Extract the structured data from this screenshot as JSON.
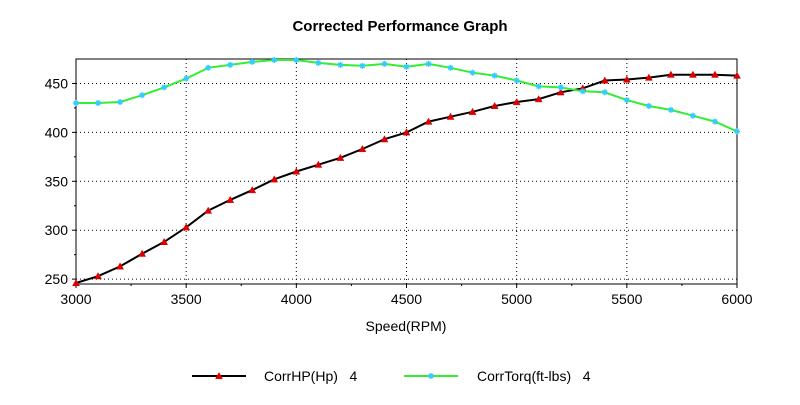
{
  "chart_data": {
    "type": "line",
    "title": "Corrected Performance Graph",
    "xlabel": "Speed(RPM)",
    "ylabel": "",
    "xlim": [
      3000,
      6000
    ],
    "ylim": [
      245,
      475
    ],
    "xticks": [
      3000,
      3500,
      4000,
      4500,
      5000,
      5500,
      6000
    ],
    "yticks": [
      250,
      300,
      350,
      400,
      450
    ],
    "grid": true,
    "legend_position": "bottom",
    "x": [
      3000,
      3100,
      3200,
      3300,
      3400,
      3500,
      3600,
      3700,
      3800,
      3900,
      4000,
      4100,
      4200,
      4300,
      4400,
      4500,
      4600,
      4700,
      4800,
      4900,
      5000,
      5100,
      5200,
      5300,
      5400,
      5500,
      5600,
      5700,
      5800,
      5900,
      6000
    ],
    "series": [
      {
        "name": "CorrHP(Hp)   4",
        "color": "#000000",
        "marker_color": "#dd0000",
        "marker": "triangle",
        "values": [
          246,
          253,
          263,
          276,
          288,
          303,
          320,
          331,
          341,
          352,
          360,
          367,
          374,
          383,
          393,
          400,
          411,
          416,
          421,
          427,
          431,
          434,
          441,
          445,
          453,
          454,
          456,
          459,
          459,
          459,
          458
        ]
      },
      {
        "name": "CorrTorq(ft-lbs)   4",
        "color": "#33ee33",
        "marker_color": "#33ccff",
        "marker": "star",
        "values": [
          430,
          430,
          431,
          438,
          446,
          455,
          466,
          469,
          472,
          474,
          474,
          471,
          469,
          468,
          470,
          467,
          470,
          466,
          461,
          458,
          453,
          447,
          446,
          442,
          441,
          433,
          427,
          423,
          417,
          411,
          401
        ]
      }
    ]
  }
}
